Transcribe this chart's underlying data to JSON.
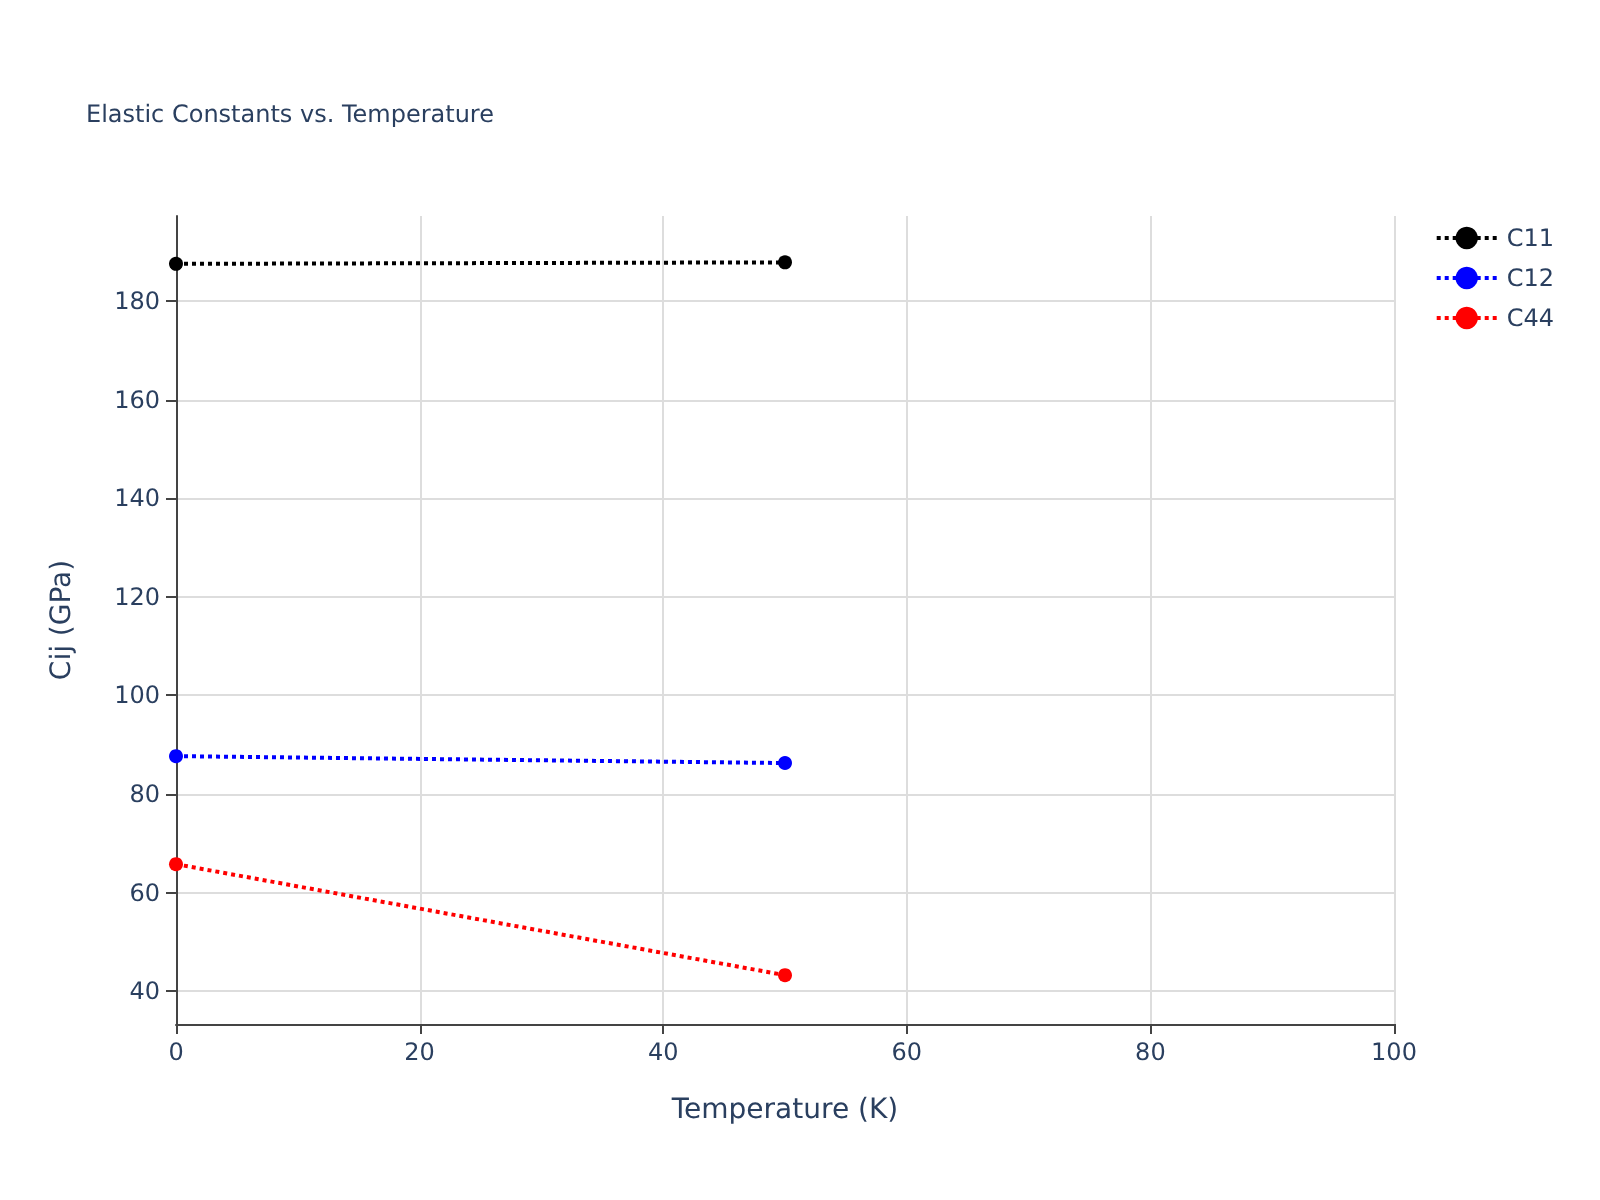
{
  "chart_data": {
    "type": "line",
    "title": "Elastic Constants vs. Temperature",
    "xlabel": "Temperature (K)",
    "ylabel": "Cij (GPa)",
    "x": [
      0,
      50
    ],
    "series": [
      {
        "name": "C11",
        "color": "#000000",
        "values": [
          187.5,
          187.8
        ]
      },
      {
        "name": "C12",
        "color": "#0000ff",
        "values": [
          87.7,
          86.3
        ]
      },
      {
        "name": "C44",
        "color": "#ff0000",
        "values": [
          65.8,
          43.3
        ]
      }
    ],
    "xlim": [
      0,
      100
    ],
    "xticks": [
      0,
      20,
      40,
      60,
      80,
      100
    ],
    "ylim": [
      33.4,
      197.2
    ],
    "yticks": [
      40,
      60,
      80,
      100,
      120,
      140,
      160,
      180
    ],
    "grid": true,
    "legend": "top right",
    "marker": "circle",
    "line_style": "dotted"
  }
}
